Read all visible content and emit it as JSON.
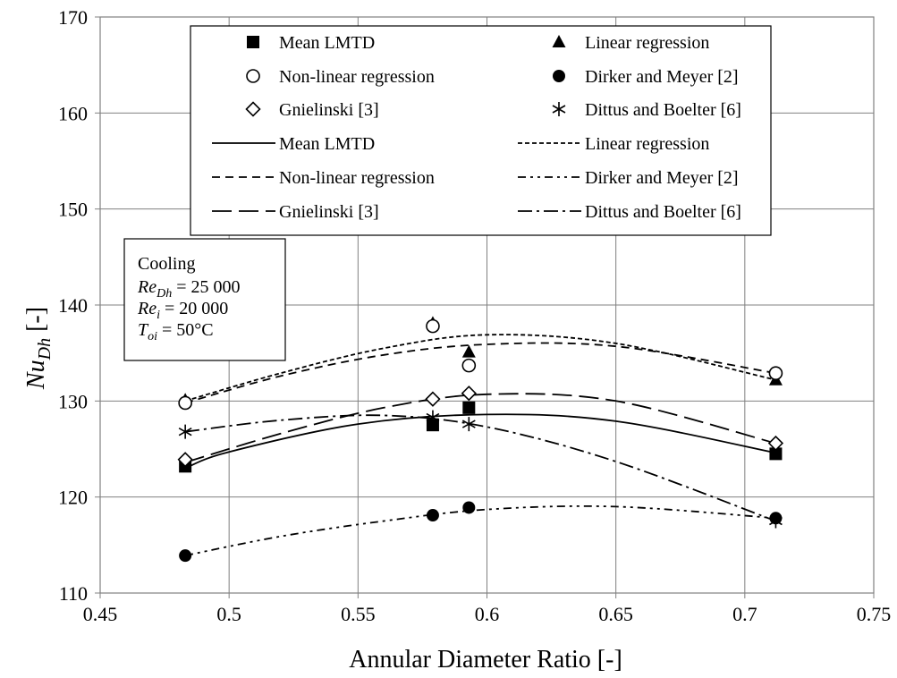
{
  "chart_data": {
    "type": "scatter",
    "xlabel": "Annular Diameter Ratio [-]",
    "ylabel": {
      "main": "Nu",
      "sub": "Dh",
      "suffix": " [-]"
    },
    "xlim": [
      0.45,
      0.75
    ],
    "ylim": [
      110,
      170
    ],
    "xticks": [
      "0.45",
      "0.5",
      "0.55",
      "0.6",
      "0.65",
      "0.7",
      "0.75"
    ],
    "yticks": [
      "110",
      "120",
      "130",
      "140",
      "150",
      "160",
      "170"
    ],
    "grid": "both",
    "legend_position": "top",
    "series": [
      {
        "name": "Mean LMTD",
        "marker": "filled-square",
        "line": "solid",
        "x": [
          0.483,
          0.579,
          0.593,
          0.712
        ],
        "y": [
          123.2,
          127.5,
          129.3,
          124.5
        ],
        "fit": [
          [
            0.483,
            123.0
          ],
          [
            0.5,
            124.7
          ],
          [
            0.55,
            127.6
          ],
          [
            0.6,
            128.6
          ],
          [
            0.65,
            127.9
          ],
          [
            0.712,
            124.6
          ]
        ]
      },
      {
        "name": "Linear regression",
        "marker": "filled-triangle",
        "line": "short-dash",
        "x": [
          0.483,
          0.579,
          0.593,
          0.712
        ],
        "y": [
          130.1,
          138.1,
          135.1,
          132.2
        ],
        "fit": [
          [
            0.483,
            130.0
          ],
          [
            0.52,
            132.9
          ],
          [
            0.56,
            135.5
          ],
          [
            0.6,
            136.9
          ],
          [
            0.65,
            136.0
          ],
          [
            0.712,
            132.2
          ]
        ]
      },
      {
        "name": "Non-linear regression",
        "marker": "open-circle",
        "line": "dash",
        "x": [
          0.483,
          0.579,
          0.593,
          0.712
        ],
        "y": [
          129.8,
          137.8,
          133.7,
          132.9
        ],
        "fit": [
          [
            0.483,
            129.8
          ],
          [
            0.52,
            132.6
          ],
          [
            0.56,
            134.8
          ],
          [
            0.6,
            135.9
          ],
          [
            0.65,
            135.7
          ],
          [
            0.712,
            132.9
          ]
        ]
      },
      {
        "name": "Dirker and Meyer [2]",
        "marker": "filled-circle",
        "line": "dash-dot-dot",
        "x": [
          0.483,
          0.579,
          0.593,
          0.712
        ],
        "y": [
          113.9,
          118.1,
          118.9,
          117.8
        ],
        "fit": [
          [
            0.483,
            113.9
          ],
          [
            0.52,
            115.9
          ],
          [
            0.56,
            117.5
          ],
          [
            0.6,
            118.7
          ],
          [
            0.65,
            119.0
          ],
          [
            0.712,
            117.8
          ]
        ]
      },
      {
        "name": "Gnielinski [3]",
        "marker": "open-diamond",
        "line": "long-dash",
        "x": [
          0.483,
          0.579,
          0.593,
          0.712
        ],
        "y": [
          123.9,
          130.2,
          130.8,
          125.6
        ],
        "fit": [
          [
            0.483,
            123.6
          ],
          [
            0.52,
            126.6
          ],
          [
            0.56,
            129.3
          ],
          [
            0.6,
            130.7
          ],
          [
            0.65,
            130.0
          ],
          [
            0.712,
            125.6
          ]
        ]
      },
      {
        "name": "Dittus and Boelter [6]",
        "marker": "asterisk",
        "line": "dash-dot",
        "x": [
          0.483,
          0.579,
          0.593,
          0.712
        ],
        "y": [
          126.8,
          128.3,
          127.6,
          117.5
        ],
        "fit": [
          [
            0.483,
            126.8
          ],
          [
            0.52,
            128.0
          ],
          [
            0.56,
            128.5
          ],
          [
            0.6,
            127.3
          ],
          [
            0.65,
            123.7
          ],
          [
            0.712,
            117.5
          ]
        ]
      }
    ],
    "annotation": {
      "title": "Cooling",
      "lines": [
        {
          "var": "Re",
          "sub": "Dh",
          "value": " = 25 000"
        },
        {
          "var": "Re",
          "sub": "i",
          "value": " = 20 000"
        },
        {
          "var": "T",
          "sub": "oi",
          "value": " = 50°C"
        }
      ]
    }
  }
}
